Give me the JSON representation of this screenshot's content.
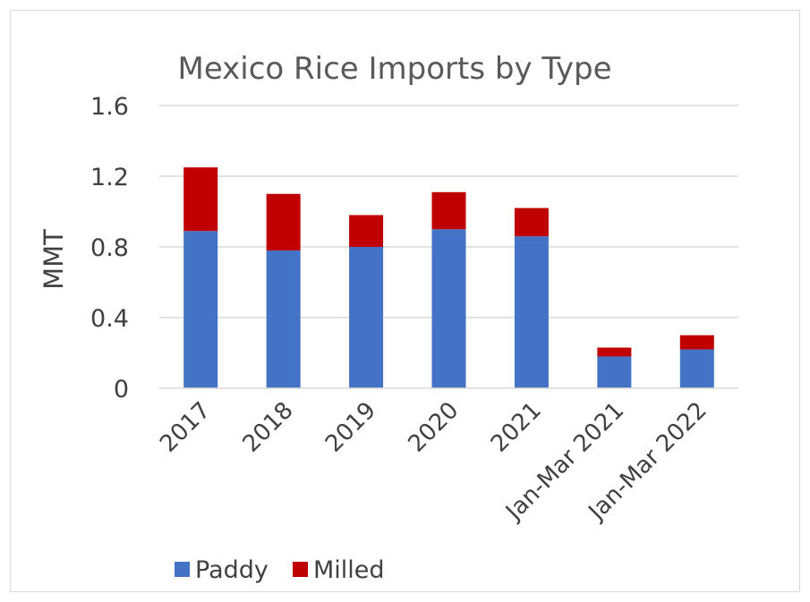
{
  "chart_data": {
    "type": "bar",
    "stacked": true,
    "title": "Mexico Rice Imports by Type",
    "xlabel": "",
    "ylabel": "MMT",
    "ylim": [
      0,
      1.6
    ],
    "yticks": [
      "0",
      "0.4",
      "0.8",
      "1.2",
      "1.6"
    ],
    "grid": true,
    "legend_position": "bottom-left",
    "categories": [
      "2017",
      "2018",
      "2019",
      "2020",
      "2021",
      "Jan-Mar 2021",
      "Jan-Mar 2022"
    ],
    "series": [
      {
        "name": "Paddy",
        "color": "#4472c4",
        "values": [
          0.89,
          0.78,
          0.8,
          0.9,
          0.86,
          0.18,
          0.22
        ]
      },
      {
        "name": "Milled",
        "color": "#c00000",
        "values": [
          0.36,
          0.32,
          0.18,
          0.21,
          0.16,
          0.05,
          0.08
        ]
      }
    ]
  }
}
